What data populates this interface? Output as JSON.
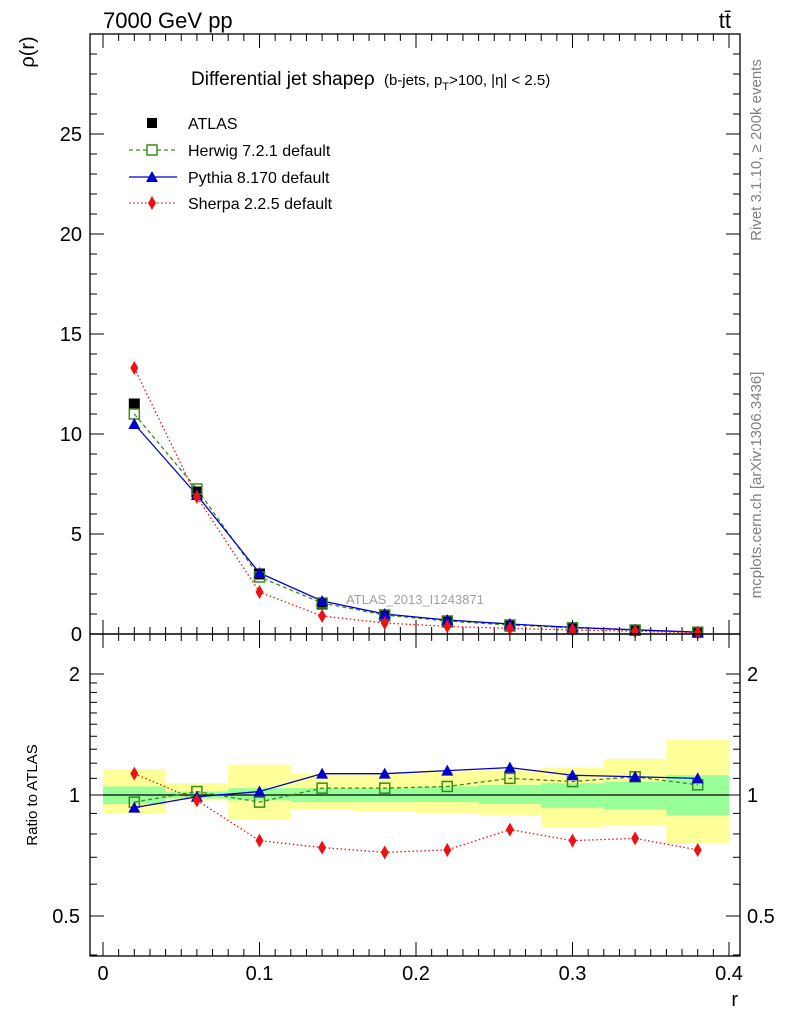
{
  "header": {
    "left": "7000 GeV pp",
    "right": "tt̄"
  },
  "side_labels": {
    "rivet": "Rivet 3.1.10, ≥ 200k events",
    "mcplots": "mcplots.cern.ch [arXiv:1306.3436]"
  },
  "chart_data": [
    {
      "type": "line",
      "title": "Differential jet shapeρ",
      "subtitle_prefix": "(b-jets, p",
      "subtitle_sub": "T",
      "subtitle_suffix": ">100, |η| < 2.5)",
      "ylabel": "ρ(r)",
      "xlabel": "",
      "xlim": [
        0,
        0.4
      ],
      "ylim": [
        0,
        30
      ],
      "yticks": [
        "0",
        "5",
        "10",
        "15",
        "20",
        "25"
      ],
      "yticks_values": [
        0,
        5,
        10,
        15,
        20,
        25
      ],
      "watermark": "ATLAS_2013_I1243871",
      "legend_placement": "top-left",
      "x": [
        0.02,
        0.06,
        0.1,
        0.14,
        0.18,
        0.22,
        0.26,
        0.3,
        0.34,
        0.38
      ],
      "series": [
        {
          "name": "ATLAS",
          "marker": "square-filled",
          "color": "#000000",
          "values": [
            11.5,
            7.1,
            3.0,
            1.5,
            0.9,
            0.6,
            0.4,
            0.28,
            0.18,
            0.08
          ]
        },
        {
          "name": "Herwig 7.2.1 default",
          "marker": "square-open",
          "color": "#3a8a1e",
          "dash": "dashed",
          "values": [
            11.0,
            7.25,
            2.85,
            1.55,
            0.95,
            0.65,
            0.45,
            0.31,
            0.2,
            0.09
          ]
        },
        {
          "name": "Pythia 8.170 default",
          "marker": "triangle",
          "color": "#0000cc",
          "dash": "solid",
          "values": [
            10.5,
            6.95,
            3.05,
            1.65,
            1.0,
            0.7,
            0.5,
            0.33,
            0.21,
            0.09
          ]
        },
        {
          "name": "Sherpa 2.2.5 default",
          "marker": "diamond",
          "color": "#ee1111",
          "dash": "dotted",
          "values": [
            13.3,
            6.85,
            2.1,
            0.9,
            0.55,
            0.38,
            0.28,
            0.2,
            0.14,
            0.06
          ]
        }
      ]
    },
    {
      "type": "line",
      "ylabel": "Ratio to ATLAS",
      "xlabel": "r",
      "xlim": [
        0,
        0.4
      ],
      "ylim": [
        0.3,
        2.4
      ],
      "xticks": [
        "0",
        "0.1",
        "0.2",
        "0.3",
        "0.4"
      ],
      "xticks_values": [
        0,
        0.1,
        0.2,
        0.3,
        0.4
      ],
      "yticks": [
        "0.5",
        "1",
        "2"
      ],
      "yticks_values": [
        0.5,
        1,
        2
      ],
      "x": [
        0.02,
        0.06,
        0.1,
        0.14,
        0.18,
        0.22,
        0.26,
        0.3,
        0.34,
        0.38
      ],
      "bins": [
        [
          0,
          0.04
        ],
        [
          0.04,
          0.08
        ],
        [
          0.08,
          0.12
        ],
        [
          0.12,
          0.16
        ],
        [
          0.16,
          0.2
        ],
        [
          0.2,
          0.24
        ],
        [
          0.24,
          0.28
        ],
        [
          0.28,
          0.32
        ],
        [
          0.32,
          0.36
        ],
        [
          0.36,
          0.4
        ]
      ],
      "band_total": [
        [
          0.9,
          1.16
        ],
        [
          0.97,
          1.07
        ],
        [
          0.87,
          1.19
        ],
        [
          0.92,
          1.13
        ],
        [
          0.91,
          1.13
        ],
        [
          0.9,
          1.15
        ],
        [
          0.89,
          1.16
        ],
        [
          0.83,
          1.17
        ],
        [
          0.84,
          1.23
        ],
        [
          0.76,
          1.37
        ]
      ],
      "band_stat": [
        [
          0.95,
          1.05
        ],
        [
          0.98,
          1.02
        ],
        [
          0.97,
          1.04
        ],
        [
          0.96,
          1.04
        ],
        [
          0.96,
          1.04
        ],
        [
          0.96,
          1.05
        ],
        [
          0.95,
          1.06
        ],
        [
          0.93,
          1.07
        ],
        [
          0.92,
          1.08
        ],
        [
          0.89,
          1.12
        ]
      ],
      "series": [
        {
          "name": "Herwig 7.2.1 default",
          "color": "#3a8a1e",
          "dash": "dashed",
          "marker": "square-open",
          "values": [
            0.96,
            1.02,
            0.96,
            1.04,
            1.04,
            1.05,
            1.1,
            1.08,
            1.11,
            1.06
          ]
        },
        {
          "name": "Pythia 8.170 default",
          "color": "#0000cc",
          "dash": "solid",
          "marker": "triangle",
          "values": [
            0.93,
            0.99,
            1.02,
            1.13,
            1.13,
            1.15,
            1.17,
            1.12,
            1.11,
            1.1
          ]
        },
        {
          "name": "Sherpa 2.2.5 default",
          "color": "#ee1111",
          "dash": "dotted",
          "marker": "diamond",
          "values": [
            1.13,
            0.97,
            0.77,
            0.74,
            0.72,
            0.73,
            0.82,
            0.77,
            0.78,
            0.73
          ]
        }
      ]
    }
  ]
}
